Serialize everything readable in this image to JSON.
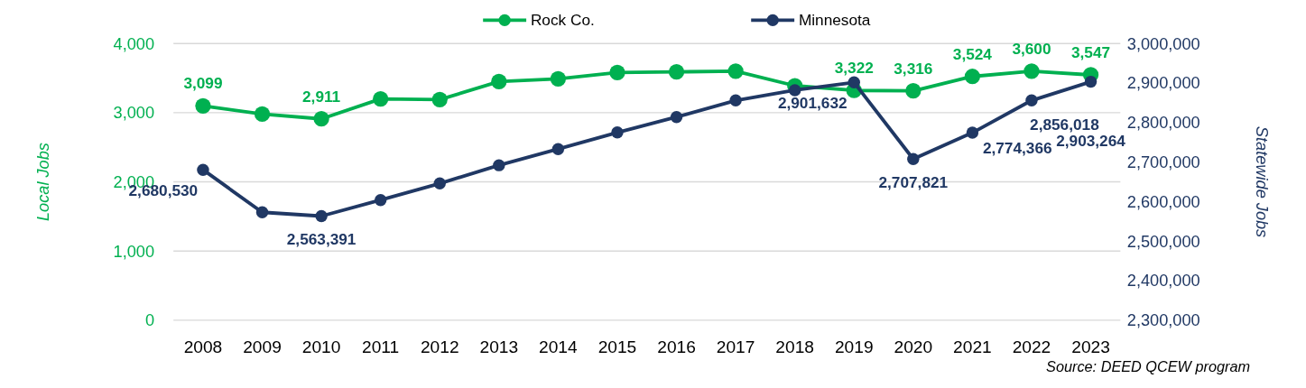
{
  "chart_data": {
    "type": "line",
    "categories": [
      "2008",
      "2009",
      "2010",
      "2011",
      "2012",
      "2013",
      "2014",
      "2015",
      "2016",
      "2017",
      "2018",
      "2019",
      "2020",
      "2021",
      "2022",
      "2023"
    ],
    "series": [
      {
        "name": "Rock Co.",
        "color": "#00b050",
        "values": [
          3099,
          2980,
          2911,
          3200,
          3190,
          3450,
          3490,
          3580,
          3590,
          3600,
          3390,
          3322,
          3316,
          3524,
          3600,
          3547
        ],
        "value_labels": [
          "3,099",
          null,
          "2,911",
          null,
          null,
          null,
          null,
          null,
          null,
          null,
          null,
          "3,322",
          "3,316",
          "3,524",
          "3,600",
          "3,547"
        ]
      },
      {
        "name": "Minnesota",
        "color": "#203864",
        "axis": "y2",
        "values": [
          2680530,
          2573000,
          2563391,
          2604000,
          2646000,
          2692000,
          2733000,
          2775000,
          2814000,
          2856000,
          2882000,
          2901632,
          2707821,
          2774366,
          2856018,
          2903264
        ],
        "value_labels": [
          "2,680,530",
          null,
          "2,563,391",
          null,
          null,
          null,
          null,
          null,
          null,
          null,
          null,
          "2,901,632",
          "2,707,821",
          "2,774,366",
          "2,856,018",
          "2,903,264"
        ]
      }
    ],
    "ylim": [
      0,
      4000
    ],
    "yticks": [
      0,
      {
        "value": 1000,
        "label": "1,000"
      },
      {
        "value": 2000,
        "label": "2,000"
      },
      {
        "value": 3000,
        "label": "3,000"
      },
      {
        "value": 4000,
        "label": "4,000"
      }
    ],
    "y2lim": [
      2300000,
      3000000
    ],
    "y2ticks": [
      {
        "value": 2300000,
        "label": "2,300,000"
      },
      {
        "value": 2400000,
        "label": "2,400,000"
      },
      {
        "value": 2500000,
        "label": "2,500,000"
      },
      {
        "value": 2600000,
        "label": "2,600,000"
      },
      {
        "value": 2700000,
        "label": "2,700,000"
      },
      {
        "value": 2800000,
        "label": "2,800,000"
      },
      {
        "value": 2900000,
        "label": "2,900,000"
      },
      {
        "value": 3000000,
        "label": "3,000,000"
      }
    ],
    "ylabel": "Local Jobs",
    "y2label": "Statewide Jobs",
    "grid": "y",
    "legend": "top",
    "marker": "circle",
    "line_style": "solid",
    "annotations": [
      "Source: DEED QCEW program"
    ]
  }
}
